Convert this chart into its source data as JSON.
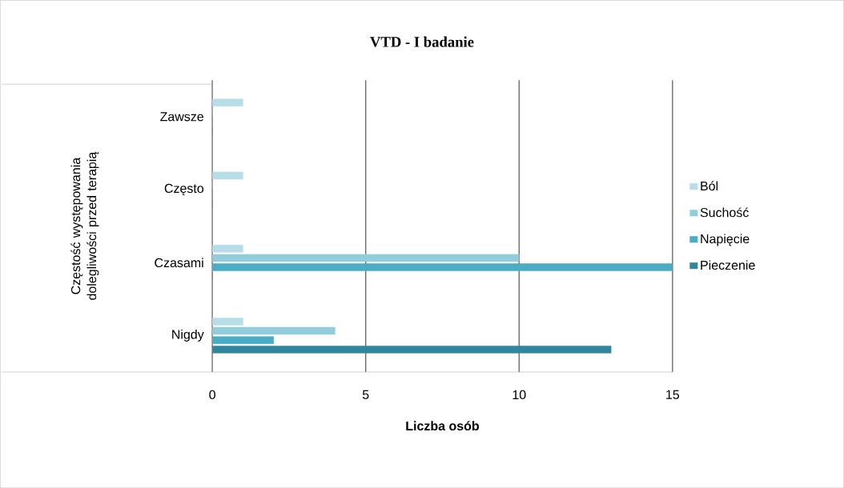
{
  "chart_data": {
    "type": "bar",
    "orientation": "horizontal",
    "title": "VTD - I badanie",
    "xlabel": "Liczba osób",
    "ylabel": "Częstość występowania dolegliwości przed terapią",
    "categories": [
      "Zawsze",
      "Często",
      "Czasami",
      "Nigdy"
    ],
    "series": [
      {
        "name": "Ból",
        "color": "#b7dde8",
        "values": [
          1,
          1,
          1,
          1
        ]
      },
      {
        "name": "Suchość",
        "color": "#93cddd",
        "values": [
          0,
          0,
          10,
          4
        ]
      },
      {
        "name": "Napięcie",
        "color": "#4bacc6",
        "values": [
          0,
          0,
          15,
          2
        ]
      },
      {
        "name": "Pieczenie",
        "color": "#31859c",
        "values": [
          0,
          0,
          0,
          13
        ]
      }
    ],
    "xlim": [
      0,
      15
    ],
    "xticks": [
      0,
      5,
      10,
      15
    ],
    "grid": "x",
    "legend": "right"
  }
}
